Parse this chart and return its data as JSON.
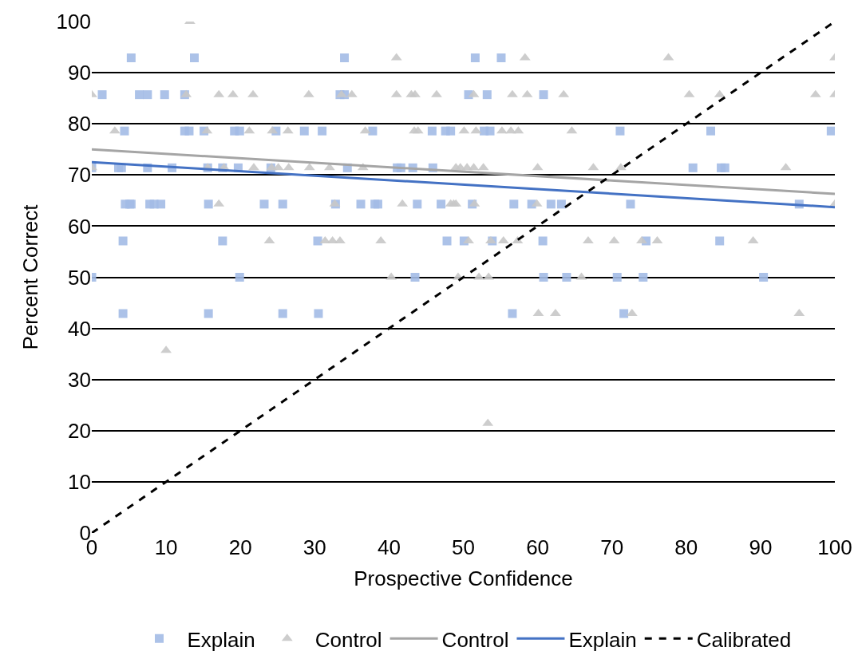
{
  "chart_data": {
    "type": "scatter",
    "xlabel": "Prospective Confidence",
    "ylabel": "Percent Correct",
    "xlim": [
      0,
      100
    ],
    "ylim": [
      0,
      100
    ],
    "xticks": [
      0,
      10,
      20,
      30,
      40,
      50,
      60,
      70,
      80,
      90,
      100
    ],
    "yticks": [
      0,
      10,
      20,
      30,
      40,
      50,
      60,
      70,
      80,
      90,
      100
    ],
    "grid": "y",
    "legend": "bottom",
    "series": [
      {
        "name": "Control",
        "marker": "triangle",
        "color": "#c8c8c8",
        "x": [
          13.2,
          41,
          58.3,
          77.6,
          100,
          0,
          12.7,
          17.1,
          19,
          21.7,
          29.2,
          33.6,
          35,
          41,
          43,
          43.5,
          46.4,
          51.4,
          56.6,
          58.6,
          63.5,
          80.4,
          84.5,
          97.4,
          100,
          3.1,
          15.5,
          21.2,
          24.3,
          26.4,
          36.8,
          43.4,
          43.9,
          50.1,
          51.7,
          55.2,
          56.4,
          57.4,
          64.6,
          0,
          15.6,
          17.8,
          21.8,
          24.2,
          25.1,
          26.5,
          29.3,
          32.0,
          36.5,
          49.0,
          49.6,
          50.5,
          51.4,
          52.7,
          60.0,
          67.5,
          71.2,
          93.4,
          17.1,
          32.7,
          41.8,
          48.3,
          48.7,
          49.0,
          51.5,
          59.9,
          100,
          23.9,
          31.4,
          32.4,
          33.4,
          38.9,
          50.7,
          53.7,
          55.4,
          57.3,
          66.8,
          70.3,
          74.0,
          76.1,
          89.0,
          40.3,
          49.3,
          52.1,
          53.4,
          65.9,
          60.1,
          62.4,
          72.7,
          95.2,
          10.0,
          53.3
        ],
        "values": [
          100,
          92.9,
          92.9,
          92.9,
          92.9,
          85.7,
          85.7,
          85.7,
          85.7,
          85.7,
          85.7,
          85.7,
          85.7,
          85.7,
          85.7,
          85.7,
          85.7,
          85.7,
          85.7,
          85.7,
          85.7,
          85.7,
          85.7,
          85.7,
          85.7,
          78.6,
          78.6,
          78.6,
          78.6,
          78.6,
          78.6,
          78.6,
          78.6,
          78.6,
          78.6,
          78.6,
          78.6,
          78.6,
          78.6,
          71.4,
          71.4,
          71.4,
          71.4,
          71.4,
          71.4,
          71.4,
          71.4,
          71.4,
          71.4,
          71.4,
          71.4,
          71.4,
          71.4,
          71.4,
          71.4,
          71.4,
          71.4,
          71.4,
          64.3,
          64.3,
          64.3,
          64.3,
          64.3,
          64.3,
          64.3,
          64.3,
          64.3,
          57.1,
          57.1,
          57.1,
          57.1,
          57.1,
          57.1,
          57.1,
          57.1,
          57.1,
          57.1,
          57.1,
          57.1,
          57.1,
          57.1,
          50,
          50,
          50,
          50,
          50,
          42.9,
          42.9,
          42.9,
          42.9,
          35.7,
          21.4
        ]
      },
      {
        "name": "Explain",
        "marker": "square",
        "color": "#a3bbe5",
        "x": [
          5.3,
          13.8,
          34.0,
          51.6,
          55.1,
          1.4,
          6.4,
          7.5,
          9.8,
          12.5,
          33.4,
          34.0,
          50.7,
          53.2,
          60.8,
          4.4,
          12.5,
          13.1,
          15.1,
          19.2,
          19.9,
          24.8,
          28.6,
          31.0,
          37.8,
          45.8,
          47.6,
          48.3,
          52.8,
          53.6,
          71.1,
          83.3,
          99.5,
          0,
          3.6,
          4.0,
          7.5,
          10.8,
          15.6,
          17.6,
          19.7,
          24.1,
          34.4,
          41.1,
          41.6,
          43.2,
          45.9,
          80.9,
          84.7,
          85.2,
          4.5,
          5.1,
          5.3,
          7.8,
          8.4,
          9.3,
          15.7,
          23.2,
          25.7,
          32.8,
          36.2,
          38.1,
          38.5,
          43.8,
          47.0,
          51.2,
          56.8,
          59.2,
          61.8,
          63.2,
          72.5,
          95.2,
          4.2,
          17.6,
          30.4,
          47.8,
          50.1,
          53.9,
          60.7,
          74.6,
          84.5,
          0,
          19.9,
          43.5,
          60.8,
          63.9,
          70.7,
          74.2,
          90.4,
          4.2,
          15.7,
          25.7,
          30.5,
          56.6,
          71.6
        ],
        "values": [
          92.9,
          92.9,
          92.9,
          92.9,
          92.9,
          85.7,
          85.7,
          85.7,
          85.7,
          85.7,
          85.7,
          85.7,
          85.7,
          85.7,
          85.7,
          78.6,
          78.6,
          78.6,
          78.6,
          78.6,
          78.6,
          78.6,
          78.6,
          78.6,
          78.6,
          78.6,
          78.6,
          78.6,
          78.6,
          78.6,
          78.6,
          78.6,
          78.6,
          71.4,
          71.4,
          71.4,
          71.4,
          71.4,
          71.4,
          71.4,
          71.4,
          71.4,
          71.4,
          71.4,
          71.4,
          71.4,
          71.4,
          71.4,
          71.4,
          71.4,
          64.3,
          64.3,
          64.3,
          64.3,
          64.3,
          64.3,
          64.3,
          64.3,
          64.3,
          64.3,
          64.3,
          64.3,
          64.3,
          64.3,
          64.3,
          64.3,
          64.3,
          64.3,
          64.3,
          64.3,
          64.3,
          64.3,
          57.1,
          57.1,
          57.1,
          57.1,
          57.1,
          57.1,
          57.1,
          57.1,
          57.1,
          50,
          50,
          50,
          50,
          50,
          50,
          50,
          50,
          42.9,
          42.9,
          42.9,
          42.9,
          42.9,
          42.9
        ]
      },
      {
        "name": "Control",
        "type": "line",
        "line_style": "solid",
        "color": "#a5a5a5",
        "x": [
          0,
          100
        ],
        "values": [
          75,
          66.3
        ]
      },
      {
        "name": "Explain",
        "type": "line",
        "line_style": "solid",
        "color": "#4472c4",
        "x": [
          0,
          100
        ],
        "values": [
          72.5,
          63.7
        ]
      },
      {
        "name": "Calibrated",
        "type": "line",
        "line_style": "dashed",
        "color": "#000000",
        "x": [
          0,
          100
        ],
        "values": [
          0,
          100
        ]
      }
    ]
  }
}
